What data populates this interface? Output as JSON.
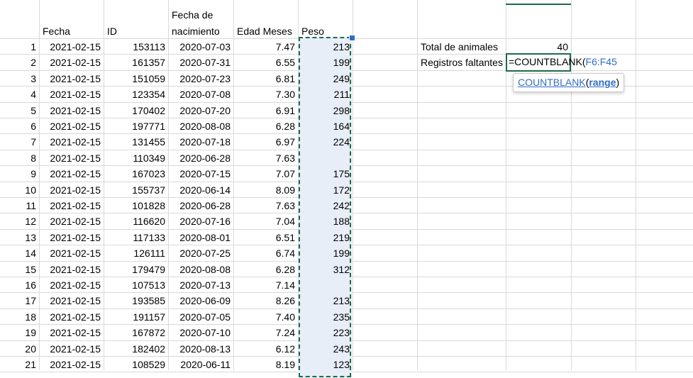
{
  "headers": {
    "fecha": "Fecha",
    "id": "ID",
    "nacimiento_line1": "Fecha de",
    "nacimiento_line2": "nacimiento",
    "edad": "Edad Meses",
    "peso": "Peso"
  },
  "rows": [
    {
      "n": "1",
      "fecha": "2021-02-15",
      "id": "153113",
      "nac": "2020-07-03",
      "edad": "7.47",
      "peso": "213"
    },
    {
      "n": "2",
      "fecha": "2021-02-15",
      "id": "161357",
      "nac": "2020-07-31",
      "edad": "6.55",
      "peso": "199"
    },
    {
      "n": "3",
      "fecha": "2021-02-15",
      "id": "151059",
      "nac": "2020-07-23",
      "edad": "6.81",
      "peso": "249"
    },
    {
      "n": "4",
      "fecha": "2021-02-15",
      "id": "123354",
      "nac": "2020-07-08",
      "edad": "7.30",
      "peso": "211"
    },
    {
      "n": "5",
      "fecha": "2021-02-15",
      "id": "170402",
      "nac": "2020-07-20",
      "edad": "6.91",
      "peso": "298"
    },
    {
      "n": "6",
      "fecha": "2021-02-15",
      "id": "197771",
      "nac": "2020-08-08",
      "edad": "6.28",
      "peso": "164"
    },
    {
      "n": "7",
      "fecha": "2021-02-15",
      "id": "131455",
      "nac": "2020-07-18",
      "edad": "6.97",
      "peso": "224"
    },
    {
      "n": "8",
      "fecha": "2021-02-15",
      "id": "110349",
      "nac": "2020-06-28",
      "edad": "7.63",
      "peso": ""
    },
    {
      "n": "9",
      "fecha": "2021-02-15",
      "id": "167023",
      "nac": "2020-07-15",
      "edad": "7.07",
      "peso": "175"
    },
    {
      "n": "10",
      "fecha": "2021-02-15",
      "id": "155737",
      "nac": "2020-06-14",
      "edad": "8.09",
      "peso": "172"
    },
    {
      "n": "11",
      "fecha": "2021-02-15",
      "id": "101828",
      "nac": "2020-06-28",
      "edad": "7.63",
      "peso": "242"
    },
    {
      "n": "12",
      "fecha": "2021-02-15",
      "id": "116620",
      "nac": "2020-07-16",
      "edad": "7.04",
      "peso": "188"
    },
    {
      "n": "13",
      "fecha": "2021-02-15",
      "id": "117133",
      "nac": "2020-08-01",
      "edad": "6.51",
      "peso": "219"
    },
    {
      "n": "14",
      "fecha": "2021-02-15",
      "id": "126111",
      "nac": "2020-07-25",
      "edad": "6.74",
      "peso": "199"
    },
    {
      "n": "15",
      "fecha": "2021-02-15",
      "id": "179479",
      "nac": "2020-08-08",
      "edad": "6.28",
      "peso": "312"
    },
    {
      "n": "16",
      "fecha": "2021-02-15",
      "id": "107513",
      "nac": "2020-07-13",
      "edad": "7.14",
      "peso": ""
    },
    {
      "n": "17",
      "fecha": "2021-02-15",
      "id": "193585",
      "nac": "2020-06-09",
      "edad": "8.26",
      "peso": "213"
    },
    {
      "n": "18",
      "fecha": "2021-02-15",
      "id": "191157",
      "nac": "2020-07-05",
      "edad": "7.40",
      "peso": "235"
    },
    {
      "n": "19",
      "fecha": "2021-02-15",
      "id": "167872",
      "nac": "2020-07-10",
      "edad": "7.24",
      "peso": "223"
    },
    {
      "n": "20",
      "fecha": "2021-02-15",
      "id": "182402",
      "nac": "2020-08-13",
      "edad": "6.12",
      "peso": "243"
    },
    {
      "n": "21",
      "fecha": "2021-02-15",
      "id": "108529",
      "nac": "2020-06-11",
      "edad": "8.19",
      "peso": "123"
    }
  ],
  "summary": {
    "total_label": "Total de animales",
    "total_value": "40",
    "missing_label": "Registros faltantes"
  },
  "formula": {
    "prefix": "=COUNTBLANK(",
    "range": "F6:F45"
  },
  "tooltip": {
    "function": "COUNTBLANK",
    "open": "(",
    "arg": "range",
    "close": ")"
  },
  "colors": {
    "selection_fill": "#e8eef8",
    "marquee": "#1e6b4a",
    "reference_blue": "#2f6cc9"
  }
}
